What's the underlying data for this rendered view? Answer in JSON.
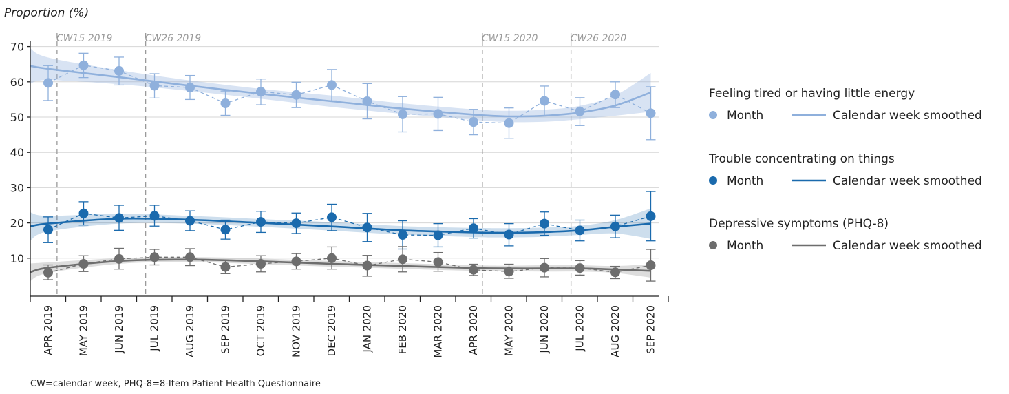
{
  "chart_data": {
    "type": "line",
    "ylabel": "Proportion (%)",
    "ylim": [
      0,
      70
    ],
    "yticks": [
      "10",
      "20",
      "30",
      "40",
      "50",
      "60",
      "70"
    ],
    "categories": [
      "APR 2019",
      "MAY 2019",
      "JUN 2019",
      "JUL 2019",
      "AUG 2019",
      "SEP 2019",
      "OCT 2019",
      "NOV 2019",
      "DEC 2019",
      "JAN 2020",
      "FEB 2020",
      "MAR 2020",
      "APR 2020",
      "MAY 2020",
      "JUN 2020",
      "JUL 2020",
      "AUG 2020",
      "SEP 2020"
    ],
    "reference_lines": [
      {
        "label": "CW15 2019",
        "x": 0.25
      },
      {
        "label": "CW26 2019",
        "x": 2.75
      },
      {
        "label": "CW15 2020",
        "x": 12.25
      },
      {
        "label": "CW26 2020",
        "x": 14.75
      }
    ],
    "series": [
      {
        "name": "Feeling tired or having little energy",
        "color": "#8fb0dc",
        "month": [
          59.7,
          64.7,
          63.1,
          58.9,
          58.4,
          53.9,
          57.2,
          56.3,
          59.1,
          54.5,
          50.8,
          50.9,
          48.6,
          48.3,
          54.6,
          51.6,
          56.4,
          51.1
        ],
        "ci_low": [
          54.7,
          61.2,
          59.1,
          55.4,
          55.0,
          50.5,
          53.5,
          52.7,
          54.6,
          49.5,
          45.8,
          46.2,
          45.0,
          44.0,
          50.4,
          47.6,
          52.7,
          43.6
        ],
        "ci_high": [
          64.6,
          68.1,
          67.0,
          62.3,
          61.8,
          57.4,
          60.8,
          59.9,
          63.5,
          59.5,
          55.8,
          55.6,
          52.2,
          52.6,
          58.8,
          55.5,
          60.0,
          58.6
        ],
        "smooth_x": [
          -1,
          0,
          2,
          4,
          6,
          8,
          10,
          12,
          13,
          14,
          15,
          16,
          17
        ],
        "smooth_y": [
          64.5,
          63.7,
          61.3,
          58.9,
          56.6,
          54.5,
          52.4,
          50.7,
          50.2,
          50.4,
          51.3,
          53.3,
          57.0
        ],
        "smooth_ci_low": [
          59.5,
          60.5,
          59.3,
          57.4,
          55.2,
          52.9,
          50.9,
          49.2,
          48.6,
          48.7,
          49.4,
          50.4,
          51.5
        ],
        "smooth_ci_high": [
          69.5,
          66.9,
          63.3,
          60.4,
          58.0,
          56.1,
          53.9,
          52.2,
          51.8,
          52.1,
          53.2,
          56.2,
          62.5
        ]
      },
      {
        "name": "Trouble concentrating on things",
        "color": "#1a6aad",
        "month": [
          18.1,
          22.7,
          21.4,
          22.0,
          20.6,
          18.1,
          20.3,
          19.9,
          21.6,
          18.7,
          16.6,
          16.5,
          18.5,
          16.7,
          19.8,
          17.9,
          19.0,
          21.9
        ],
        "ci_low": [
          14.4,
          19.4,
          17.9,
          19.1,
          17.8,
          15.4,
          17.3,
          17.0,
          17.8,
          14.7,
          12.6,
          13.2,
          15.7,
          13.5,
          16.5,
          14.9,
          15.8,
          14.9
        ],
        "ci_high": [
          21.7,
          26.0,
          25.0,
          25.0,
          23.4,
          20.8,
          23.3,
          22.8,
          25.3,
          22.7,
          20.6,
          19.8,
          21.2,
          19.8,
          23.1,
          20.8,
          22.2,
          28.9
        ],
        "smooth_x": [
          -1,
          0,
          2,
          4,
          6,
          8,
          10,
          12,
          13,
          14,
          15,
          16,
          17
        ],
        "smooth_y": [
          19.0,
          19.8,
          21.2,
          20.9,
          20.0,
          19.0,
          17.9,
          17.3,
          17.2,
          17.4,
          17.9,
          18.9,
          19.8
        ],
        "smooth_ci_low": [
          15.0,
          17.6,
          19.8,
          19.8,
          18.9,
          17.8,
          16.7,
          16.0,
          15.9,
          16.1,
          16.6,
          17.0,
          15.5
        ],
        "smooth_ci_high": [
          23.0,
          22.0,
          22.6,
          22.0,
          21.1,
          20.2,
          19.1,
          18.6,
          18.5,
          18.7,
          19.2,
          20.8,
          24.1
        ]
      },
      {
        "name": "Depressive symptoms (PHQ-8)",
        "color": "#6d6d6d",
        "month": [
          5.9,
          8.4,
          9.8,
          10.3,
          10.3,
          7.5,
          8.4,
          9.1,
          10.0,
          7.9,
          9.7,
          8.9,
          6.7,
          6.2,
          7.3,
          7.2,
          6.0,
          8.0
        ],
        "ci_low": [
          3.9,
          6.2,
          6.9,
          8.1,
          7.9,
          5.6,
          6.1,
          6.9,
          6.9,
          4.9,
          6.1,
          6.3,
          5.1,
          4.3,
          4.7,
          5.2,
          4.2,
          3.5
        ],
        "ci_high": [
          8.1,
          10.7,
          12.8,
          12.5,
          12.7,
          9.4,
          10.7,
          11.3,
          13.2,
          10.8,
          13.3,
          11.6,
          8.3,
          8.3,
          9.9,
          9.3,
          7.7,
          12.5
        ],
        "smooth_x": [
          -1,
          0,
          2,
          4,
          6,
          8,
          10,
          12,
          13,
          14,
          15,
          16,
          17
        ],
        "smooth_y": [
          6.0,
          7.3,
          9.2,
          9.6,
          9.1,
          8.4,
          7.8,
          7.2,
          7.1,
          7.1,
          7.1,
          6.8,
          6.4
        ],
        "smooth_ci_low": [
          3.5,
          5.8,
          8.4,
          8.9,
          8.3,
          7.6,
          7.0,
          6.4,
          6.3,
          6.2,
          6.2,
          5.8,
          4.5
        ],
        "smooth_ci_high": [
          8.5,
          8.8,
          10.0,
          10.3,
          9.9,
          9.2,
          8.6,
          8.0,
          7.9,
          8.0,
          8.0,
          7.8,
          8.3
        ]
      }
    ],
    "legend": {
      "placement": "right",
      "groups": [
        {
          "title": "Feeling tired or having little energy",
          "month_label": "Month",
          "smooth_label": "Calendar week smoothed"
        },
        {
          "title": "Trouble concentrating on things",
          "month_label": "Month",
          "smooth_label": "Calendar week smoothed"
        },
        {
          "title": "Depressive symptoms (PHQ-8)",
          "month_label": "Month",
          "smooth_label": "Calendar week smoothed"
        }
      ]
    },
    "footnote": "CW=calendar week, PHQ-8=8-Item Patient Health Questionnaire"
  }
}
